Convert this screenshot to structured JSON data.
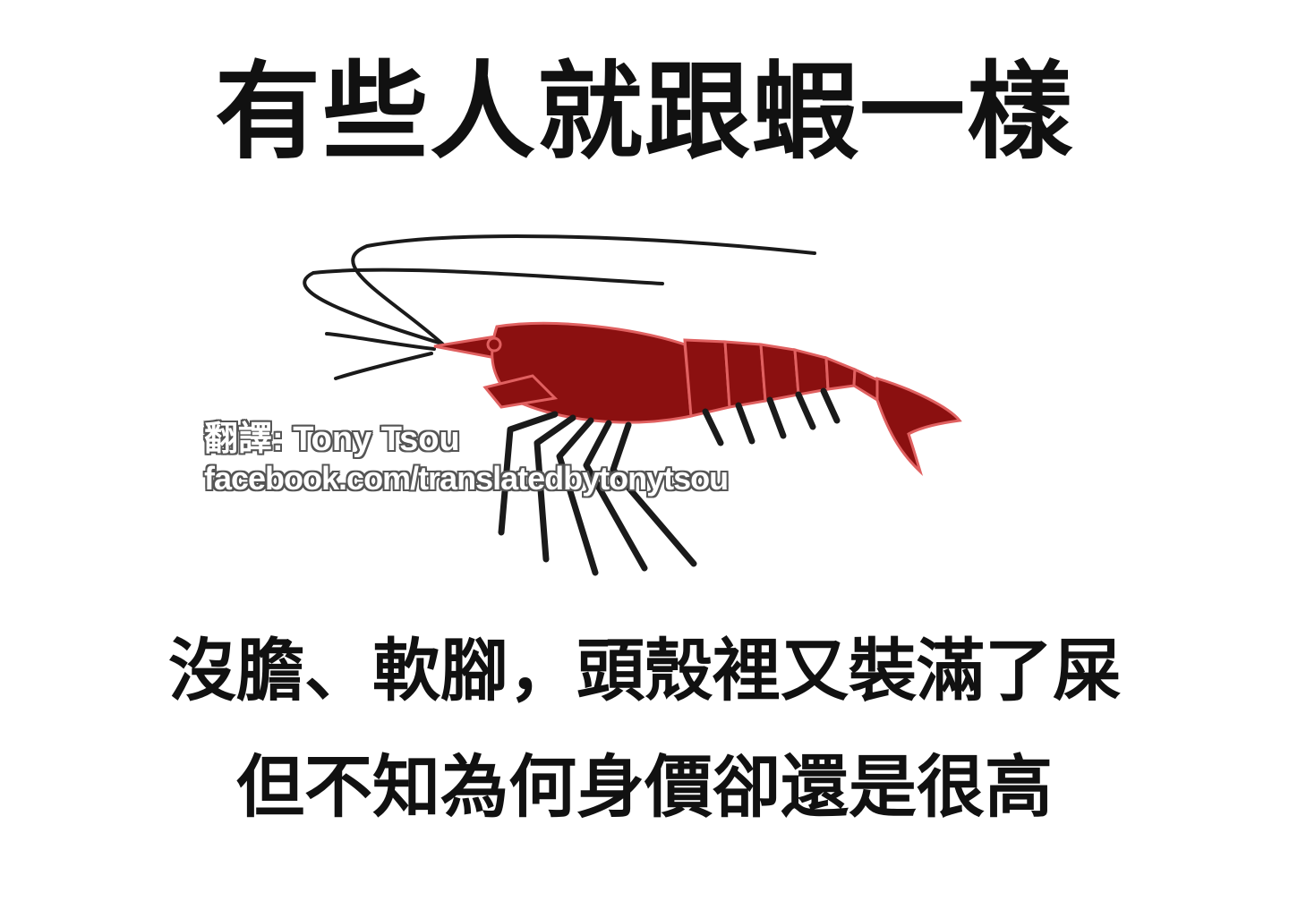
{
  "title": "有些人就跟蝦一樣",
  "watermark": {
    "credit": "翻譯: Tony Tsou",
    "url": "facebook.com/translatedbytonytsou"
  },
  "caption": {
    "line1": "沒膽、軟腳，頭殼裡又裝滿了屎",
    "line2": "但不知為何身價卻還是很高"
  },
  "illustration": {
    "subject": "shrimp-icon",
    "body_color": "#8b1010",
    "outline_color": "#e06060",
    "line_color": "#1a1a1a"
  }
}
